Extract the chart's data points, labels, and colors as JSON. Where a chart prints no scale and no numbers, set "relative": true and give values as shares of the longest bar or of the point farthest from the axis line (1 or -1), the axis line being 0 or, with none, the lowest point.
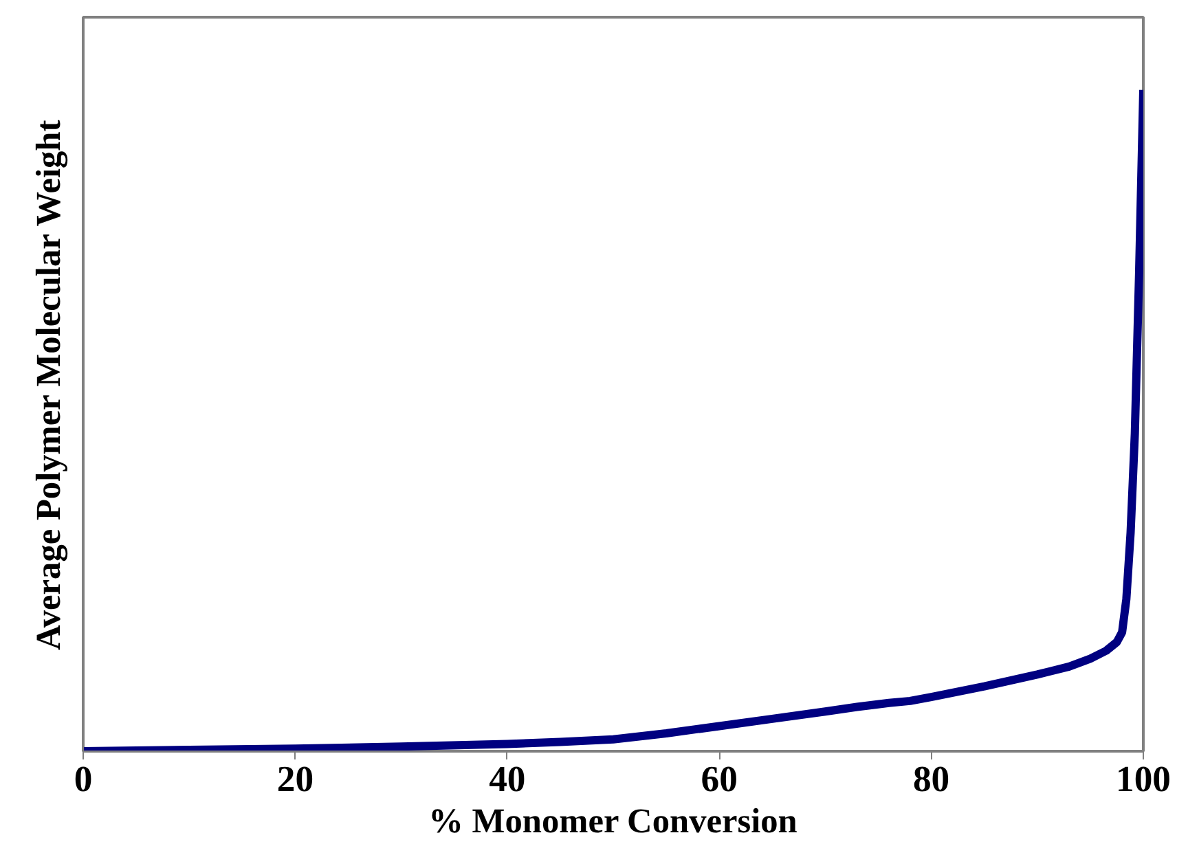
{
  "chart_data": {
    "type": "line",
    "relative": true,
    "xlabel": "% Monomer Conversion",
    "ylabel": "Average Polymer Molecular Weight",
    "xlim": [
      0,
      100
    ],
    "xticks": [
      0,
      20,
      40,
      60,
      80,
      100
    ],
    "grid": false,
    "marker": "none",
    "line_style": "solid",
    "series": [
      {
        "color": "#000080",
        "x": [
          0,
          10,
          20,
          30,
          40,
          45,
          50,
          55,
          60,
          65,
          70,
          73,
          76,
          78,
          80,
          85,
          90,
          93,
          95,
          96.5,
          97.5,
          98,
          98.4,
          98.8,
          99.2,
          99.6,
          100
        ],
        "values": [
          0,
          0.002,
          0.004,
          0.007,
          0.011,
          0.014,
          0.018,
          0.027,
          0.038,
          0.049,
          0.06,
          0.067,
          0.073,
          0.076,
          0.082,
          0.098,
          0.116,
          0.128,
          0.14,
          0.152,
          0.165,
          0.18,
          0.23,
          0.33,
          0.48,
          0.72,
          1
        ]
      }
    ]
  }
}
